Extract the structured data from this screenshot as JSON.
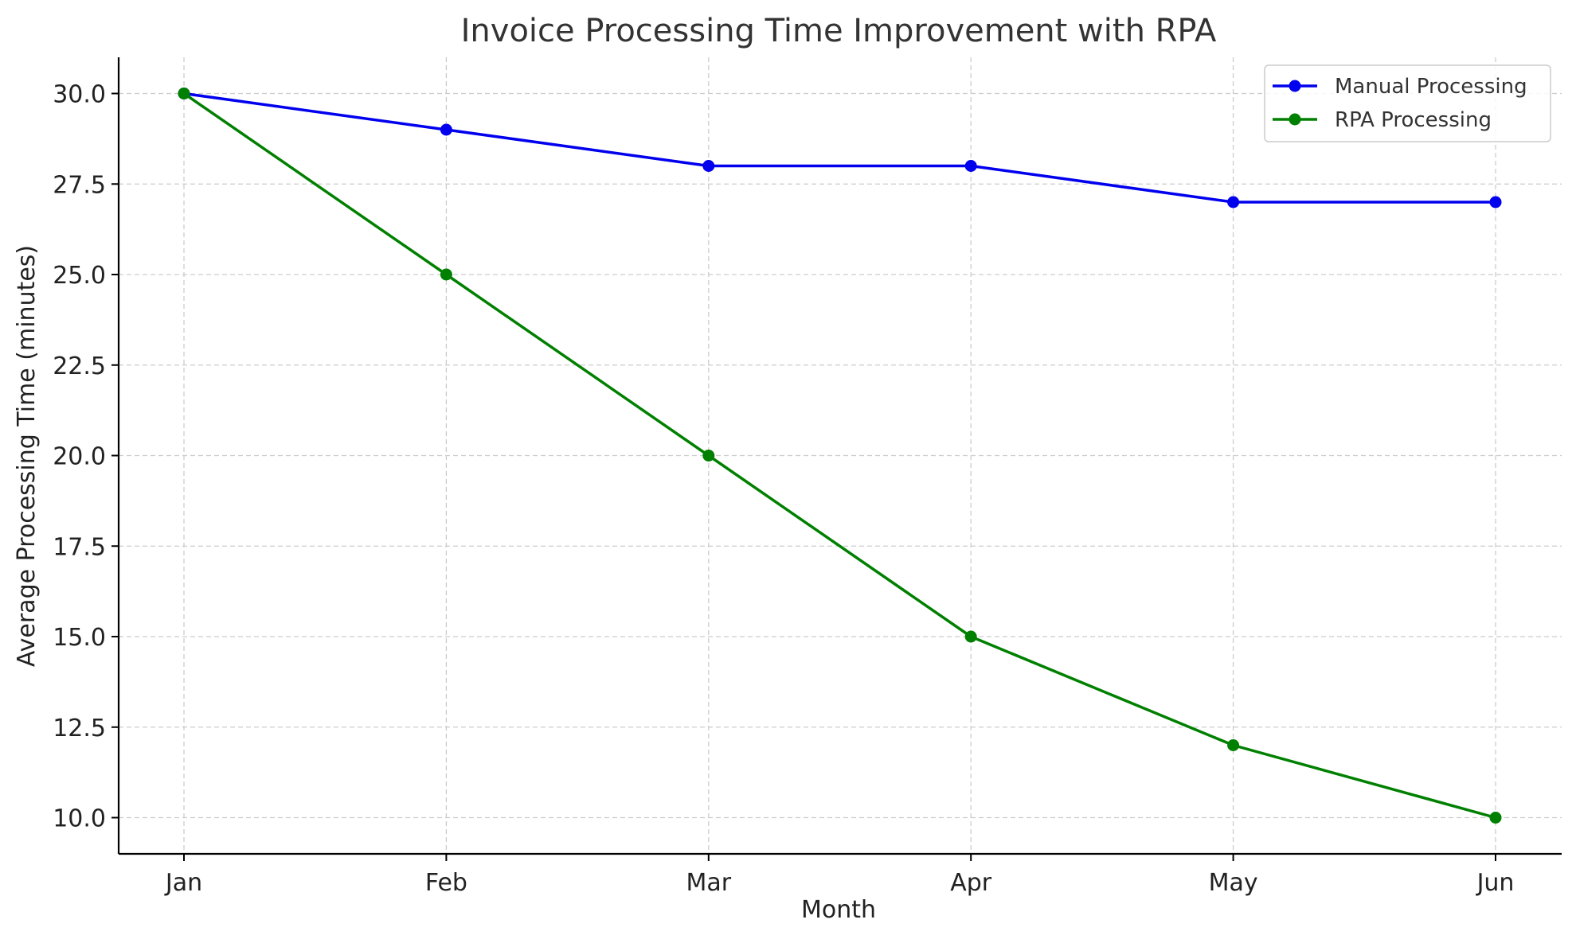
{
  "chart_data": {
    "type": "line",
    "title": "Invoice Processing Time Improvement with RPA",
    "xlabel": "Month",
    "ylabel": "Average Processing Time (minutes)",
    "categories": [
      "Jan",
      "Feb",
      "Mar",
      "Apr",
      "May",
      "Jun"
    ],
    "ylim": [
      9,
      31
    ],
    "yticks": [
      "10.0",
      "12.5",
      "15.0",
      "17.5",
      "20.0",
      "22.5",
      "25.0",
      "27.5",
      "30.0"
    ],
    "grid": true,
    "legend_position": "top-right",
    "series": [
      {
        "name": "Manual Processing",
        "color": "#0000ee",
        "values": [
          30,
          29,
          28,
          28,
          27,
          27
        ]
      },
      {
        "name": "RPA Processing",
        "color": "#008000",
        "values": [
          30,
          25,
          20,
          15,
          12,
          10
        ]
      }
    ]
  }
}
